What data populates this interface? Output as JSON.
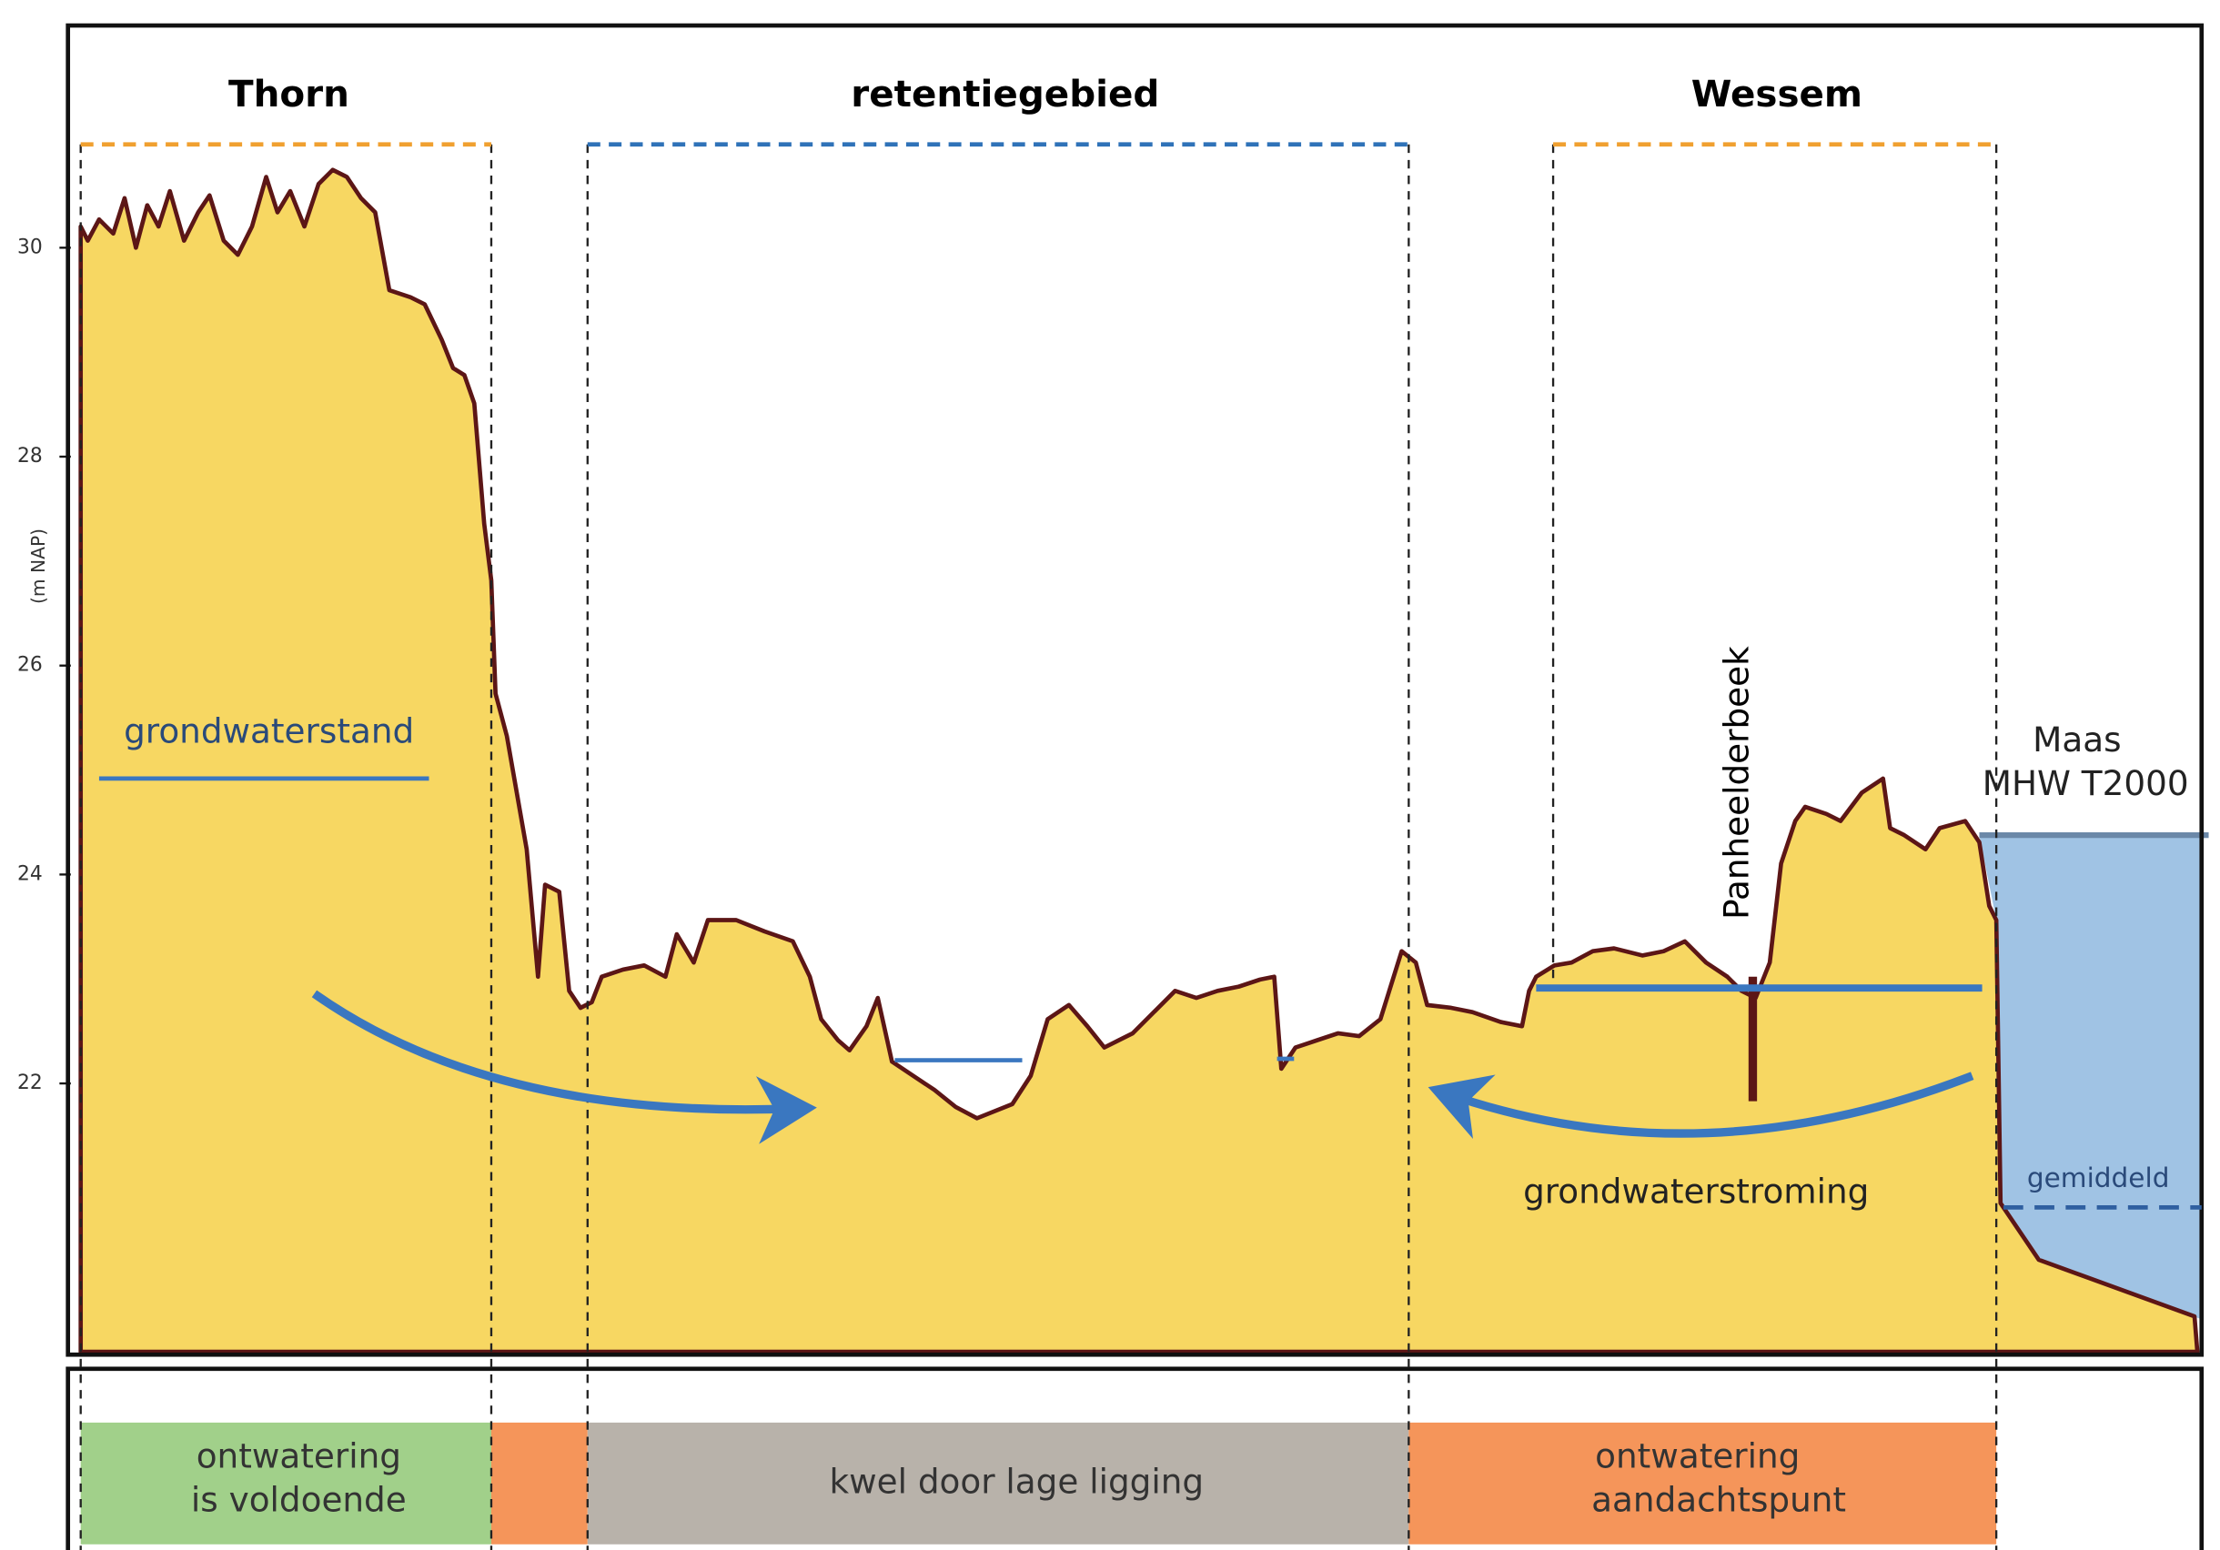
{
  "axis": {
    "label": "(m NAP)",
    "ticks": [
      22,
      24,
      26,
      28,
      30
    ]
  },
  "zones": {
    "left": "Thorn",
    "middle": "retentiegebied",
    "right": "Wessem"
  },
  "annotations": {
    "groundwater_level": "grondwaterstand",
    "stream": "Panheelderbeek",
    "river": "Maas",
    "river_level": "MHW T2000",
    "average": "gemiddeld",
    "flow": "grondwaterstroming"
  },
  "bottom": {
    "box1": [
      "ontwatering",
      "is voldoende"
    ],
    "box2": "kwel door lage ligging",
    "box3": [
      "ontwatering",
      "aandachtspunt"
    ]
  }
}
